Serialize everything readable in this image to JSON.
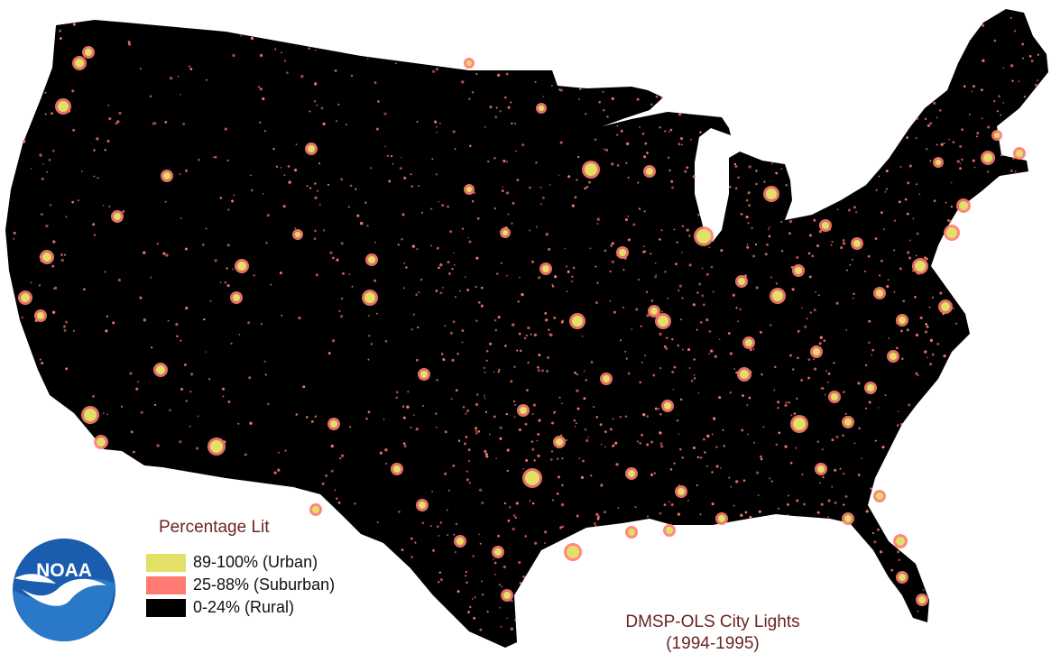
{
  "map": {
    "colors": {
      "background": "#ffffff",
      "urban": "#e2e067",
      "suburban": "#ff7b72",
      "rural": "#000000",
      "text_accent": "#6b2424"
    }
  },
  "legend": {
    "title": "Percentage Lit",
    "items": [
      {
        "label": "89-100% (Urban)",
        "color": "#e2e067"
      },
      {
        "label": "25-88% (Suburban)",
        "color": "#ff7b72"
      },
      {
        "label": "0-24% (Rural)",
        "color": "#000000"
      }
    ]
  },
  "caption": {
    "line1": "DMSP-OLS City Lights",
    "line2": "(1994-1995)"
  },
  "logo": {
    "text": "NOAA",
    "icon": "noaa-logo-icon"
  }
}
